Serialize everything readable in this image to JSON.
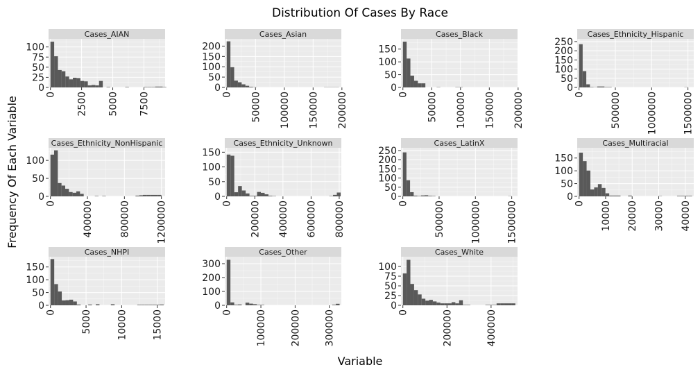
{
  "title": "Distribution Of Cases By Race",
  "xlabel": "Variable",
  "ylabel": "Frequency Of Each Variable",
  "colors": {
    "bar": "#595959",
    "panel": "#ebebeb",
    "strip": "#d9d9d9",
    "grid_major": "#ffffff",
    "text": "#1a1a1a"
  },
  "chart_data": [
    {
      "type": "bar",
      "title": "Cases_AIAN",
      "binwidth": 300,
      "x0": 0,
      "xlim": [
        -150,
        9200
      ],
      "ylim": [
        0,
        120
      ],
      "xticks": [
        0,
        2500,
        5000,
        7500
      ],
      "xtick_labels": [
        "0",
        "2500",
        "5000",
        "7500"
      ],
      "yticks": [
        0,
        25,
        50,
        75,
        100
      ],
      "ytick_labels": [
        "0",
        "25",
        "50",
        "75",
        "100"
      ],
      "counts": [
        113,
        77,
        43,
        40,
        27,
        20,
        24,
        23,
        16,
        15,
        5,
        6,
        5,
        16,
        0,
        1,
        0,
        0,
        0,
        0,
        1,
        0,
        0,
        0,
        0,
        1,
        1,
        1,
        2,
        2,
        1
      ]
    },
    {
      "type": "bar",
      "title": "Cases_Asian",
      "binwidth": 6500,
      "x0": 0,
      "xlim": [
        -3300,
        199000
      ],
      "ylim": [
        0,
        235
      ],
      "xticks": [
        0,
        50000,
        100000,
        150000,
        200000
      ],
      "xtick_labels": [
        "0",
        "50000",
        "100000",
        "150000",
        "200000"
      ],
      "yticks": [
        0,
        50,
        100,
        150,
        200
      ],
      "ytick_labels": [
        "0",
        "50",
        "100",
        "150",
        "200"
      ],
      "counts": [
        223,
        98,
        33,
        25,
        15,
        8,
        3,
        1,
        0,
        0,
        0,
        0,
        0,
        0,
        0,
        0,
        0,
        0,
        0,
        0,
        0,
        0,
        0,
        0,
        0,
        0,
        1,
        1,
        1,
        1
      ]
    },
    {
      "type": "bar",
      "title": "Cases_Black",
      "binwidth": 6500,
      "x0": 0,
      "xlim": [
        -3300,
        199000
      ],
      "ylim": [
        0,
        190
      ],
      "xticks": [
        0,
        50000,
        100000,
        150000,
        200000
      ],
      "xtick_labels": [
        "0",
        "50000",
        "100000",
        "150000",
        "200000"
      ],
      "yticks": [
        0,
        50,
        100,
        150
      ],
      "ytick_labels": [
        "0",
        "50",
        "100",
        "150"
      ],
      "counts": [
        179,
        113,
        46,
        26,
        16,
        16,
        0,
        0,
        0,
        1,
        0,
        0,
        0,
        0,
        1,
        1,
        0,
        0,
        0,
        0,
        0,
        0,
        0,
        0,
        0,
        0,
        0,
        0,
        0,
        0
      ]
    },
    {
      "type": "bar",
      "title": "Cases_Ethnicity_Hispanic",
      "binwidth": 50000,
      "x0": 0,
      "xlim": [
        -25000,
        1580000
      ],
      "ylim": [
        0,
        265
      ],
      "xticks": [
        0,
        500000,
        1000000,
        1500000
      ],
      "xtick_labels": [
        "0",
        "500000",
        "1000000",
        "1500000"
      ],
      "yticks": [
        0,
        50,
        100,
        150,
        200,
        250
      ],
      "ytick_labels": [
        "0",
        "50",
        "100",
        "150",
        "200",
        "250"
      ],
      "counts": [
        236,
        89,
        17,
        2,
        1,
        5,
        5,
        2,
        2,
        0,
        0,
        0,
        0,
        0,
        0,
        0,
        0,
        0,
        0,
        0,
        0,
        0,
        0,
        0,
        0,
        0,
        0,
        0,
        0,
        1
      ]
    },
    {
      "type": "bar",
      "title": "Cases_Ethnicity_NonHispanic",
      "binwidth": 40000,
      "x0": 0,
      "xlim": [
        -20000,
        1240000
      ],
      "ylim": [
        0,
        135
      ],
      "xticks": [
        0,
        400000,
        800000,
        1200000
      ],
      "xtick_labels": [
        "0",
        "400000",
        "800000",
        "1200000"
      ],
      "yticks": [
        0,
        50,
        100
      ],
      "ytick_labels": [
        "0",
        "50",
        "100"
      ],
      "counts": [
        116,
        128,
        37,
        30,
        21,
        12,
        10,
        14,
        7,
        0,
        0,
        0,
        1,
        0,
        1,
        0,
        0,
        0,
        0,
        0,
        0,
        0,
        0,
        2,
        3,
        4,
        4,
        4,
        4,
        4
      ]
    },
    {
      "type": "bar",
      "title": "Cases_Ethnicity_Unknown",
      "binwidth": 27000,
      "x0": 0,
      "xlim": [
        -13500,
        815000
      ],
      "ylim": [
        0,
        165
      ],
      "xticks": [
        0,
        200000,
        400000,
        600000,
        800000
      ],
      "xtick_labels": [
        "0",
        "200000",
        "400000",
        "600000",
        "800000"
      ],
      "yticks": [
        0,
        50,
        100,
        150
      ],
      "ytick_labels": [
        "0",
        "50",
        "100",
        "150"
      ],
      "counts": [
        142,
        138,
        14,
        35,
        20,
        10,
        2,
        2,
        15,
        12,
        7,
        2,
        1,
        0,
        0,
        0,
        0,
        0,
        0,
        0,
        0,
        0,
        0,
        0,
        0,
        0,
        0,
        1,
        5,
        13
      ]
    },
    {
      "type": "bar",
      "title": "Cases_LatinX",
      "binwidth": 50000,
      "x0": 0,
      "xlim": [
        -25000,
        1580000
      ],
      "ylim": [
        0,
        265
      ],
      "xticks": [
        0,
        500000,
        1000000,
        1500000
      ],
      "xtick_labels": [
        "0",
        "500000",
        "1000000",
        "1500000"
      ],
      "yticks": [
        0,
        50,
        100,
        150,
        200,
        250
      ],
      "ytick_labels": [
        "0",
        "50",
        "100",
        "150",
        "200",
        "250"
      ],
      "counts": [
        240,
        88,
        23,
        4,
        2,
        5,
        6,
        3,
        2,
        0,
        0,
        0,
        0,
        0,
        0,
        0,
        0,
        0,
        0,
        0,
        0,
        0,
        0,
        0,
        0,
        0,
        0,
        0,
        0,
        1
      ]
    },
    {
      "type": "bar",
      "title": "Cases_Multiracial",
      "binwidth": 1420,
      "x0": 0,
      "xlim": [
        -700,
        43200
      ],
      "ylim": [
        0,
        190
      ],
      "xticks": [
        0,
        10000,
        20000,
        30000,
        40000
      ],
      "xtick_labels": [
        "0",
        "10000",
        "20000",
        "30000",
        "40000"
      ],
      "yticks": [
        0,
        50,
        100,
        150
      ],
      "ytick_labels": [
        "0",
        "50",
        "100",
        "150"
      ],
      "counts": [
        171,
        138,
        101,
        27,
        35,
        48,
        33,
        12,
        3,
        3,
        3,
        0,
        0,
        3,
        0,
        0,
        0,
        0,
        0,
        0,
        0,
        1,
        0,
        0,
        0,
        0,
        2,
        2,
        2,
        2
      ]
    },
    {
      "type": "bar",
      "title": "Cases_NHPI",
      "binwidth": 530,
      "x0": 0,
      "xlim": [
        -265,
        16100
      ],
      "ylim": [
        0,
        190
      ],
      "xticks": [
        0,
        5000,
        10000,
        15000
      ],
      "xtick_labels": [
        "0",
        "5000",
        "10000",
        "15000"
      ],
      "yticks": [
        0,
        50,
        100,
        150
      ],
      "ytick_labels": [
        "0",
        "50",
        "100",
        "150"
      ],
      "counts": [
        181,
        83,
        54,
        19,
        20,
        22,
        15,
        3,
        0,
        0,
        3,
        0,
        4,
        0,
        0,
        0,
        4,
        0,
        0,
        0,
        0,
        0,
        0,
        2,
        2,
        2,
        2,
        2,
        2,
        3
      ]
    },
    {
      "type": "bar",
      "title": "Cases_Other",
      "binwidth": 11000,
      "x0": 0,
      "xlim": [
        -5500,
        335000
      ],
      "ylim": [
        0,
        350
      ],
      "xticks": [
        0,
        100000,
        200000,
        300000
      ],
      "xtick_labels": [
        "0",
        "100000",
        "200000",
        "300000"
      ],
      "yticks": [
        0,
        100,
        200,
        300
      ],
      "ytick_labels": [
        "0",
        "100",
        "200",
        "300"
      ],
      "counts": [
        328,
        21,
        4,
        6,
        0,
        19,
        12,
        8,
        3,
        3,
        0,
        0,
        0,
        0,
        0,
        0,
        0,
        0,
        0,
        0,
        0,
        0,
        0,
        0,
        0,
        0,
        0,
        0,
        4,
        11
      ]
    },
    {
      "type": "bar",
      "title": "Cases_White",
      "binwidth": 17000,
      "x0": 0,
      "xlim": [
        -8500,
        520000
      ],
      "ylim": [
        0,
        125
      ],
      "xticks": [
        0,
        200000,
        400000
      ],
      "xtick_labels": [
        "0",
        "200000",
        "400000"
      ],
      "yticks": [
        0,
        25,
        50,
        75,
        100
      ],
      "ytick_labels": [
        "0",
        "25",
        "50",
        "75",
        "100"
      ],
      "counts": [
        82,
        117,
        55,
        39,
        28,
        17,
        12,
        14,
        10,
        7,
        5,
        5,
        5,
        8,
        5,
        13,
        1,
        1,
        0,
        0,
        0,
        0,
        1,
        1,
        1,
        5,
        5,
        5,
        5,
        5
      ]
    }
  ]
}
